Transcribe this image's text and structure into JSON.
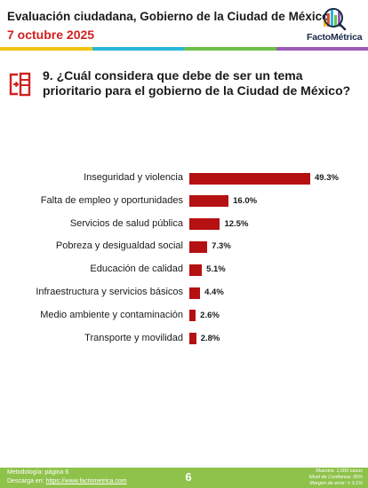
{
  "header": {
    "title": "Evaluación ciudadana, Gobierno de la Ciudad de México",
    "date": "7 octubre 2025",
    "logo_text": "FactoMétrica"
  },
  "colors": {
    "accent_red": "#d0201f",
    "bar": "#b51012",
    "stripe": [
      "#f1c40f",
      "#29b6d8",
      "#6cc04a",
      "#9b59b6"
    ],
    "footer": "#8fc24b"
  },
  "question": {
    "text": "9. ¿Cuál considera que debe de ser un tema prioritario para el gobierno de la Ciudad de México?",
    "icon": "document-arrow-icon"
  },
  "chart_data": {
    "type": "bar",
    "orientation": "horizontal",
    "categories": [
      "Inseguridad y violencia",
      "Falta de empleo y oportunidades",
      "Servicios de salud pública",
      "Pobreza y desigualdad social",
      "Educación de calidad",
      "Infraestructura y servicios básicos",
      "Medio ambiente y contaminación",
      "Transporte y movilidad"
    ],
    "values": [
      49.3,
      16.0,
      12.5,
      7.3,
      5.1,
      4.4,
      2.6,
      2.8
    ],
    "value_labels": [
      "49.3%",
      "16.0%",
      "12.5%",
      "7.3%",
      "5.1%",
      "4.4%",
      "2.6%",
      "2.8%"
    ],
    "unit": "%",
    "xlim": [
      0,
      50
    ],
    "grid": false,
    "legend": "none"
  },
  "footer": {
    "methodology": "Metodología: página 6",
    "download_label": "Descarga en:",
    "download_url": "https://www.factometrica.com",
    "page": "6",
    "sample": "Muestra: 1,000 casos",
    "confidence": "Nivel de Confianza: 95%",
    "error": "Margen de error: ± 3.1%"
  }
}
